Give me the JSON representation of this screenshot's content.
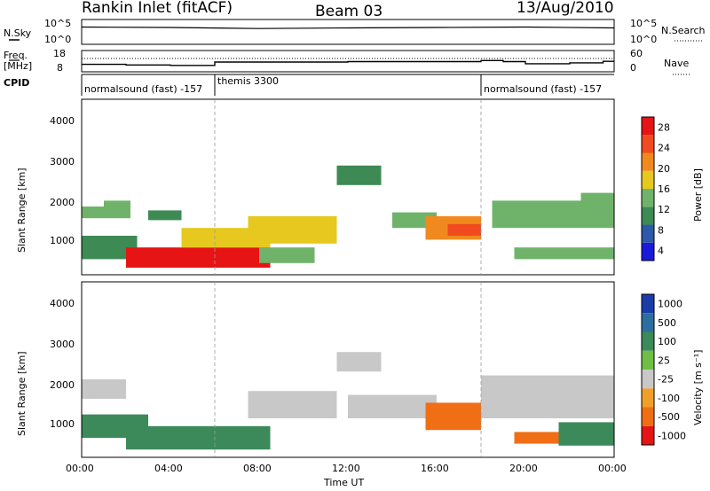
{
  "header": {
    "station": "Rankin Inlet (fitACF)",
    "beam": "Beam 03",
    "date": "13/Aug/2010"
  },
  "noise_panel": {
    "left_label": "N.Sky",
    "right_label": "N.Search",
    "left_ticks": [
      "10^5",
      "10^0"
    ],
    "right_ticks": [
      "10^5",
      "10^0"
    ]
  },
  "freq_panel": {
    "left_label_top": "Freq.",
    "left_label_unit": "[MHz]",
    "right_label": "Nave",
    "left_ticks": [
      "18",
      "8"
    ],
    "right_ticks": [
      "60",
      "0"
    ]
  },
  "cpid_panel": {
    "label": "CPID",
    "modes": [
      "normalsound (fast) -157",
      "themis 3300",
      "normalsound (fast) -157"
    ]
  },
  "power_panel": {
    "ylabel": "Slant Range [km]",
    "yticks": [
      "4000",
      "3000",
      "2000",
      "1000"
    ],
    "colorbar_label": "Power [dB]",
    "colorbar_ticks": [
      "28",
      "24",
      "20",
      "16",
      "12",
      "8",
      "4"
    ],
    "colors": [
      "#1a1adc",
      "#2d5aa8",
      "#3d8a55",
      "#6fb36a",
      "#e6c81e",
      "#f08a1e",
      "#f04a1e",
      "#e61414"
    ]
  },
  "velocity_panel": {
    "ylabel": "Slant Range [km]",
    "yticks": [
      "4000",
      "3000",
      "2000",
      "1000"
    ],
    "colorbar_label": "Velocity [m s⁻¹]",
    "colorbar_ticks": [
      "1000",
      "500",
      "100",
      "25",
      "-25",
      "-100",
      "-500",
      "-1000"
    ],
    "colors": [
      "#1a3ca8",
      "#2d6ea0",
      "#3c8a5a",
      "#6fbf46",
      "#c8c8c8",
      "#f0a028",
      "#f06e14",
      "#e61414"
    ]
  },
  "xaxis": {
    "label": "Time UT",
    "ticks": [
      "00:00",
      "04:00",
      "08:00",
      "12:00",
      "16:00",
      "20:00",
      "00:00"
    ]
  },
  "chart_data": [
    {
      "type": "line",
      "title": "N.Sky / N.Search",
      "x": [
        "00:00",
        "04:00",
        "08:00",
        "12:00",
        "16:00",
        "20:00",
        "24:00"
      ],
      "yscale": "log",
      "ylim": [
        1,
        100000
      ],
      "series": [
        {
          "name": "N.Sky",
          "values": [
            3000,
            2500,
            1500,
            2000,
            2500,
            3000,
            2000
          ]
        }
      ]
    },
    {
      "type": "line",
      "title": "Freq. [MHz] / Nave",
      "x": [
        "00:00",
        "01:00",
        "02:00",
        "04:00",
        "06:00",
        "12:00",
        "18:00",
        "19:00",
        "20:00",
        "22:00",
        "23:30"
      ],
      "ylim": [
        8,
        18
      ],
      "series": [
        {
          "name": "Freq.",
          "values": [
            11.5,
            11.5,
            11.2,
            11.0,
            12.6,
            12.8,
            13.3,
            12.8,
            11.8,
            12.2,
            12.9
          ]
        }
      ]
    },
    {
      "type": "table",
      "title": "CPID",
      "columns": [
        "start",
        "end",
        "mode"
      ],
      "rows": [
        [
          "00:00",
          "06:00",
          "normalsound (fast) -157"
        ],
        [
          "06:00",
          "18:00",
          "themis 3300"
        ],
        [
          "18:00",
          "24:00",
          "normalsound (fast) -157"
        ]
      ]
    },
    {
      "type": "heatmap",
      "title": "Power [dB]",
      "xlim": [
        "00:00",
        "24:00"
      ],
      "ylim": [
        0,
        4500
      ],
      "ylabel": "Slant Range [km]",
      "zlim": [
        0,
        30
      ],
      "regions": [
        {
          "t0": 0.0,
          "t1": 2.2,
          "r0": 1450,
          "r1": 1750,
          "power": 12
        },
        {
          "t0": 1.0,
          "t1": 2.2,
          "r0": 1650,
          "r1": 1900,
          "power": 12
        },
        {
          "t0": 0.0,
          "t1": 2.5,
          "r0": 400,
          "r1": 1000,
          "power": 10
        },
        {
          "t0": 3.0,
          "t1": 4.5,
          "r0": 1400,
          "r1": 1650,
          "power": 10
        },
        {
          "t0": 2.0,
          "t1": 8.5,
          "r0": 180,
          "r1": 700,
          "power": 28
        },
        {
          "t0": 4.5,
          "t1": 8.5,
          "r0": 700,
          "r1": 1200,
          "power": 18
        },
        {
          "t0": 7.5,
          "t1": 11.5,
          "r0": 800,
          "r1": 1500,
          "power": 16
        },
        {
          "t0": 8.0,
          "t1": 10.5,
          "r0": 300,
          "r1": 700,
          "power": 14
        },
        {
          "t0": 11.5,
          "t1": 13.5,
          "r0": 2300,
          "r1": 2800,
          "power": 10
        },
        {
          "t0": 14.0,
          "t1": 16.0,
          "r0": 1200,
          "r1": 1600,
          "power": 12
        },
        {
          "t0": 15.5,
          "t1": 18.0,
          "r0": 900,
          "r1": 1500,
          "power": 20
        },
        {
          "t0": 16.5,
          "t1": 18.0,
          "r0": 1000,
          "r1": 1300,
          "power": 26
        },
        {
          "t0": 18.5,
          "t1": 24.0,
          "r0": 1200,
          "r1": 1900,
          "power": 12
        },
        {
          "t0": 19.5,
          "t1": 24.0,
          "r0": 400,
          "r1": 700,
          "power": 12
        },
        {
          "t0": 22.5,
          "t1": 24.0,
          "r0": 1700,
          "r1": 2100,
          "power": 14
        }
      ]
    },
    {
      "type": "heatmap",
      "title": "Velocity [m s⁻¹]",
      "xlim": [
        "00:00",
        "24:00"
      ],
      "ylim": [
        0,
        4500
      ],
      "ylabel": "Slant Range [km]",
      "zlim": [
        -1000,
        1000
      ],
      "regions": [
        {
          "t0": 0.0,
          "t1": 2.0,
          "r0": 1500,
          "r1": 2000,
          "velocity": 0
        },
        {
          "t0": 0.0,
          "t1": 3.0,
          "r0": 500,
          "r1": 1100,
          "velocity": 150
        },
        {
          "t0": 2.0,
          "t1": 8.5,
          "r0": 200,
          "r1": 800,
          "velocity": 100
        },
        {
          "t0": 7.5,
          "t1": 11.5,
          "r0": 1000,
          "r1": 1700,
          "velocity": 0
        },
        {
          "t0": 11.5,
          "t1": 13.5,
          "r0": 2200,
          "r1": 2700,
          "velocity": 0
        },
        {
          "t0": 12.0,
          "t1": 16.0,
          "r0": 1000,
          "r1": 1600,
          "velocity": 20
        },
        {
          "t0": 15.5,
          "t1": 18.0,
          "r0": 700,
          "r1": 1400,
          "velocity": -300
        },
        {
          "t0": 19.5,
          "t1": 22.0,
          "r0": 350,
          "r1": 650,
          "velocity": -300
        },
        {
          "t0": 18.0,
          "t1": 24.0,
          "r0": 1000,
          "r1": 2100,
          "velocity": 0
        },
        {
          "t0": 21.5,
          "t1": 24.0,
          "r0": 300,
          "r1": 900,
          "velocity": 150
        }
      ]
    }
  ]
}
